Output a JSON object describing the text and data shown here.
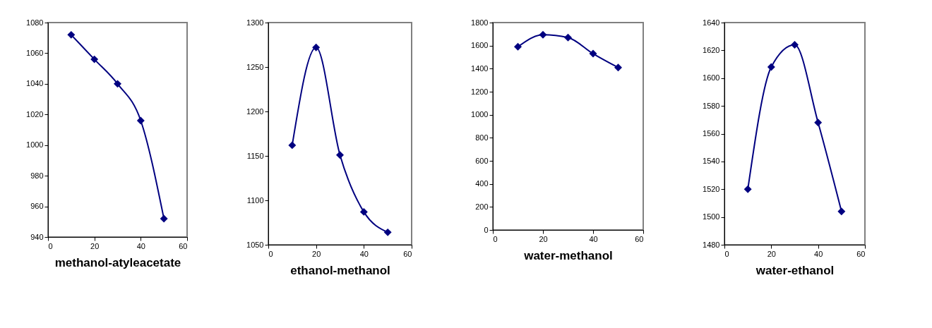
{
  "chart_data": [
    {
      "type": "line",
      "xlabel": "methanol-atyleacetate",
      "x": [
        10,
        20,
        30,
        40,
        50
      ],
      "series": [
        {
          "color": "#000080",
          "values": [
            1072,
            1056,
            1040,
            1016,
            952
          ]
        }
      ],
      "xlim": [
        0,
        60
      ],
      "xticks": [
        0,
        20,
        40,
        60
      ],
      "ylim": [
        940,
        1080
      ],
      "yticks": [
        940,
        960,
        980,
        1000,
        1020,
        1040,
        1060,
        1080
      ],
      "marker": "diamond",
      "line_style": "solid"
    },
    {
      "type": "line",
      "xlabel": "ethanol-methanol",
      "x": [
        10,
        20,
        30,
        40,
        50
      ],
      "series": [
        {
          "color": "#000080",
          "values": [
            1162,
            1272,
            1151,
            1087,
            1064
          ]
        }
      ],
      "xlim": [
        0,
        60
      ],
      "xticks": [
        0,
        20,
        40,
        60
      ],
      "ylim": [
        1050,
        1300
      ],
      "yticks": [
        1050,
        1100,
        1150,
        1200,
        1250,
        1300
      ],
      "marker": "diamond",
      "line_style": "solid"
    },
    {
      "type": "line",
      "xlabel": "water-methanol",
      "x": [
        10,
        20,
        30,
        40,
        50
      ],
      "series": [
        {
          "color": "#000080",
          "values": [
            1590,
            1695,
            1670,
            1530,
            1410
          ]
        }
      ],
      "xlim": [
        0,
        60
      ],
      "xticks": [
        0,
        20,
        40,
        60
      ],
      "ylim": [
        0,
        1800
      ],
      "yticks": [
        0,
        200,
        400,
        600,
        800,
        1000,
        1200,
        1400,
        1600,
        1800
      ],
      "marker": "diamond",
      "line_style": "solid"
    },
    {
      "type": "line",
      "xlabel": "water-ethanol",
      "x": [
        10,
        20,
        30,
        40,
        50
      ],
      "series": [
        {
          "color": "#000080",
          "values": [
            1520,
            1608,
            1624,
            1568,
            1504
          ]
        }
      ],
      "xlim": [
        0,
        60
      ],
      "xticks": [
        0,
        20,
        40,
        60
      ],
      "ylim": [
        1480,
        1640
      ],
      "yticks": [
        1480,
        1500,
        1520,
        1540,
        1560,
        1580,
        1600,
        1620,
        1640
      ],
      "marker": "diamond",
      "line_style": "solid"
    }
  ]
}
